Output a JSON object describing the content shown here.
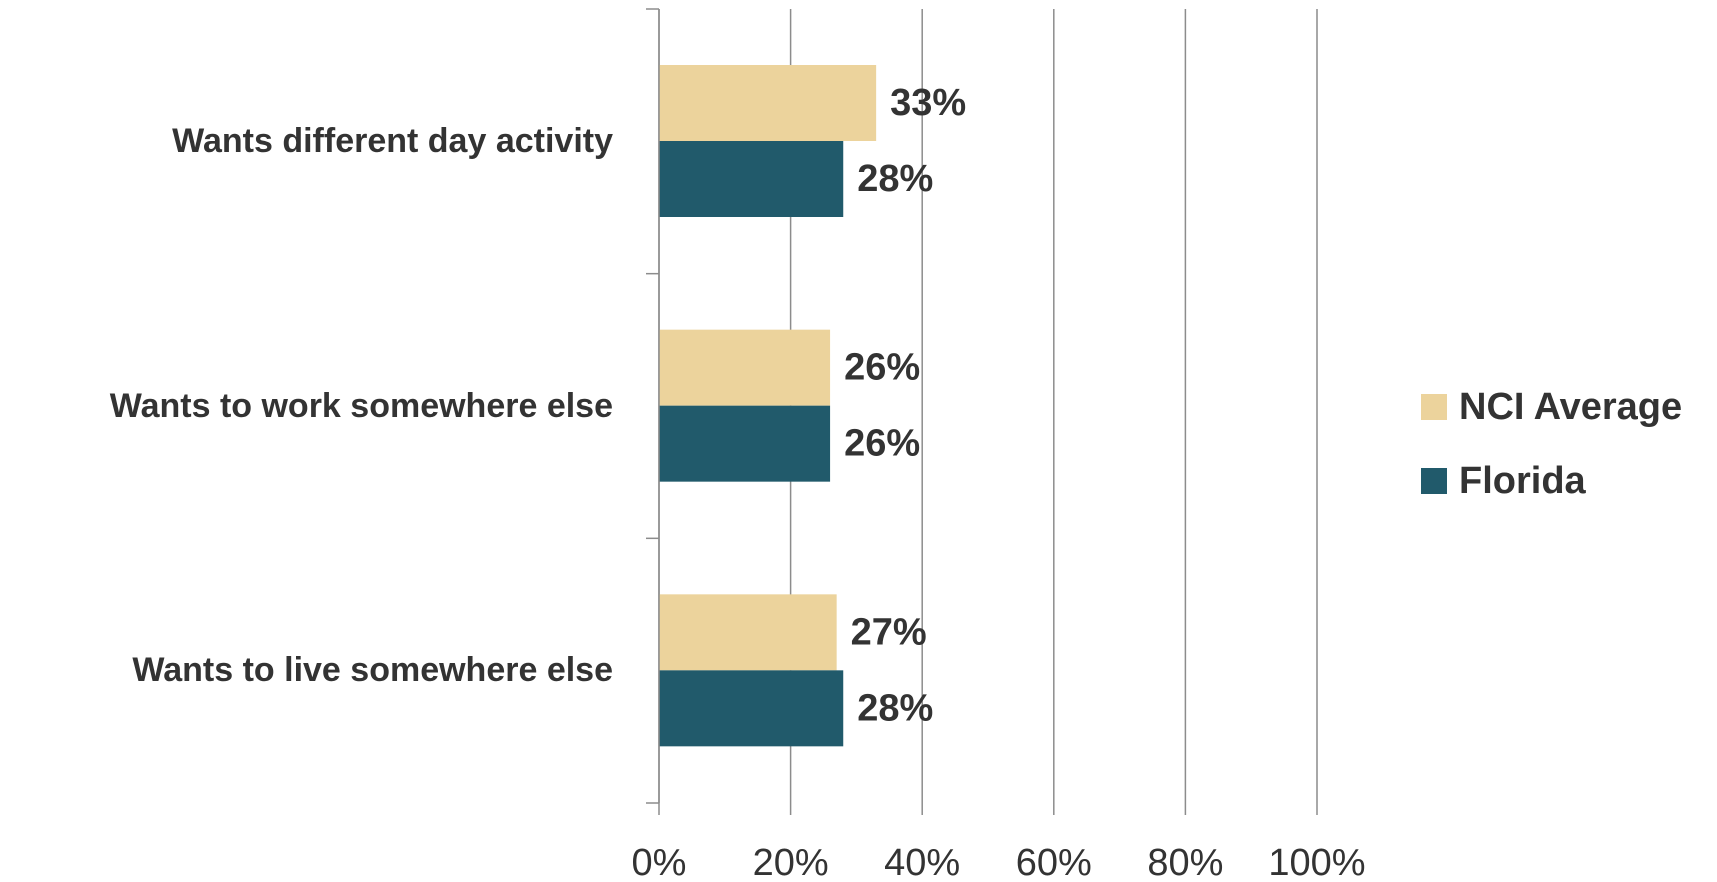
{
  "chart_data": {
    "type": "hbar",
    "categories": [
      "Wants different day activity",
      "Wants to work somewhere else",
      "Wants to live somewhere else"
    ],
    "series": [
      {
        "name": "NCI Average",
        "color": "#ecd39c",
        "values": [
          33,
          26,
          27
        ],
        "value_labels": [
          "33%",
          "26%",
          "27%"
        ]
      },
      {
        "name": "Florida",
        "color": "#215a6b",
        "values": [
          28,
          26,
          28
        ],
        "value_labels": [
          "28%",
          "26%",
          "28%"
        ]
      }
    ],
    "xlim": [
      0,
      100
    ],
    "xticks": [
      {
        "value": 0,
        "label": "0%"
      },
      {
        "value": 20,
        "label": "20%"
      },
      {
        "value": 40,
        "label": "40%"
      },
      {
        "value": 60,
        "label": "60%"
      },
      {
        "value": 80,
        "label": "80%"
      },
      {
        "value": 100,
        "label": "100%"
      }
    ],
    "grid": true,
    "legend": "right"
  }
}
